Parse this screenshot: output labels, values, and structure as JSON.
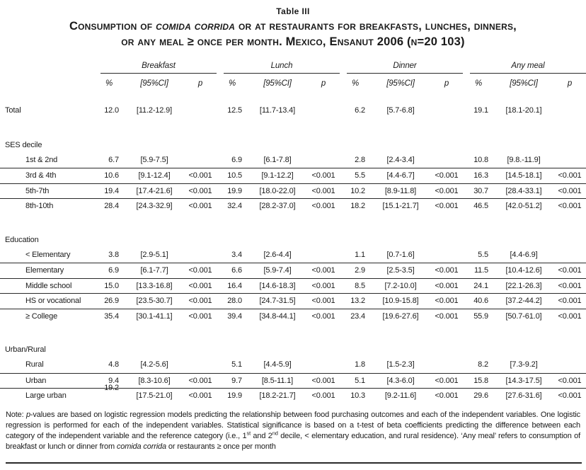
{
  "table_label": "Table III",
  "title": {
    "line1": [
      {
        "t": "Consumption of ",
        "s": "n"
      },
      {
        "t": "comida corrida",
        "s": "i"
      },
      {
        "t": " or at restaurants for breakfasts, lunches, dinners,",
        "s": "n"
      }
    ],
    "line2": [
      {
        "t": "or any meal ≥ once per month. Mexico, Ensanut 2006 (n=20 103)",
        "s": "n"
      }
    ]
  },
  "columns": {
    "groups": [
      "Breakfast",
      "Lunch",
      "Dinner",
      "Any meal"
    ],
    "sub": [
      "%",
      "[95%CI]",
      "p"
    ]
  },
  "sections": [
    {
      "header": "",
      "rows": [
        {
          "label": "Total",
          "indent": false,
          "cells": [
            "12.0",
            "[11.2-12.9]",
            "",
            "12.5",
            "[11.7-13.4]",
            "",
            "6.2",
            "[5.7-6.8]",
            "",
            "19.1",
            "[18.1-20.1]",
            ""
          ]
        }
      ]
    },
    {
      "header": "SES decile",
      "rows": [
        {
          "label": "1st & 2nd",
          "indent": true,
          "cells": [
            "6.7",
            "[5.9-7.5]",
            "",
            "6.9",
            "[6.1-7.8]",
            "",
            "2.8",
            "[2.4-3.4]",
            "",
            "10.8",
            "[9.8.-11.9]",
            ""
          ]
        },
        {
          "label": "3rd & 4th",
          "indent": true,
          "cells": [
            "10.6",
            "[9.1-12.4]",
            "<0.001",
            "10.5",
            "[9.1-12.2]",
            "<0.001",
            "5.5",
            "[4.4-6.7]",
            "<0.001",
            "16.3",
            "[14.5-18.1]",
            "<0.001"
          ]
        },
        {
          "label": "5th-7th",
          "indent": true,
          "cells": [
            "19.4",
            "[17.4-21.6]",
            "<0.001",
            "19.9",
            "[18.0-22.0]",
            "<0.001",
            "10.2",
            "[8.9-11.8]",
            "<0.001",
            "30.7",
            "[28.4-33.1]",
            "<0.001"
          ]
        },
        {
          "label": "8th-10th",
          "indent": true,
          "cells": [
            "28.4",
            "[24.3-32.9]",
            "<0.001",
            "32.4",
            "[28.2-37.0]",
            "<0.001",
            "18.2",
            "[15.1-21.7]",
            "<0.001",
            "46.5",
            "[42.0-51.2]",
            "<0.001"
          ]
        }
      ]
    },
    {
      "header": "Education",
      "rows": [
        {
          "label": "< Elementary",
          "indent": true,
          "cells": [
            "3.8",
            "[2.9-5.1]",
            "",
            "3.4",
            "[2.6-4.4]",
            "",
            "1.1",
            "[0.7-1.6]",
            "",
            "5.5",
            "[4.4-6.9]",
            ""
          ]
        },
        {
          "label": "Elementary",
          "indent": true,
          "cells": [
            "6.9",
            "[6.1-7.7]",
            "<0.001",
            "6.6",
            "[5.9-7.4]",
            "<0.001",
            "2.9",
            "[2.5-3.5]",
            "<0.001",
            "11.5",
            "[10.4-12.6]",
            "<0.001"
          ]
        },
        {
          "label": "Middle school",
          "indent": true,
          "cells": [
            "15.0",
            "[13.3-16.8]",
            "<0.001",
            "16.4",
            "[14.6-18.3]",
            "<0.001",
            "8.5",
            "[7.2-10.0]",
            "<0.001",
            "24.1",
            "[22.1-26.3]",
            "<0.001"
          ]
        },
        {
          "label": "HS or vocational",
          "indent": true,
          "cells": [
            "26.9",
            "[23.5-30.7]",
            "<0.001",
            "28.0",
            "[24.7-31.5]",
            "<0.001",
            "13.2",
            "[10.9-15.8]",
            "<0.001",
            "40.6",
            "[37.2-44.2]",
            "<0.001"
          ]
        },
        {
          "label": "≥ College",
          "indent": true,
          "cells": [
            "35.4",
            "[30.1-41.1]",
            "<0.001",
            "39.4",
            "[34.8-44.1]",
            "<0.001",
            "23.4",
            "[19.6-27.6]",
            "<0.001",
            "55.9",
            "[50.7-61.0]",
            "<0.001"
          ]
        }
      ]
    },
    {
      "header": "Urban/Rural",
      "rows": [
        {
          "label": "Rural",
          "indent": true,
          "cells": [
            "4.8",
            "[4.2-5.6]",
            "",
            "5.1",
            "[4.4-5.9]",
            "",
            "1.8",
            "[1.5-2.3]",
            "",
            "8.2",
            "[7.3-9.2]",
            ""
          ]
        },
        {
          "label": "Urban",
          "indent": true,
          "cells": [
            "9.4",
            "[8.3-10.6]",
            "<0.001",
            "9.7",
            "[8.5-11.1]",
            "<0.001",
            "5.1",
            "[4.3-6.0]",
            "<0.001",
            "15.8",
            "[14.3-17.5]",
            "<0.001"
          ]
        },
        {
          "label": "Large urban",
          "indent": true,
          "pct_raised": true,
          "cells": [
            "19.2",
            "[17.5-21.0]",
            "<0.001",
            "19.9",
            "[18.2-21.7]",
            "<0.001",
            "10.3",
            "[9.2-11.6]",
            "<0.001",
            "29.6",
            "[27.6-31.6]",
            "<0.001"
          ]
        }
      ]
    }
  ],
  "note": [
    {
      "t": "Note: ",
      "s": "n"
    },
    {
      "t": "p",
      "s": "i"
    },
    {
      "t": "-values are based on logistic regression models predicting the relationship between food purchasing outcomes and each of the independent variables. One logistic regression is performed for each of the independent variables. Statistical significance is based on a t-test of beta coefficients predicting the difference between each category of the independent variable and the reference category (i.e., 1",
      "s": "n"
    },
    {
      "t": "st",
      "s": "sup"
    },
    {
      "t": " and 2",
      "s": "n"
    },
    {
      "t": "nd",
      "s": "sup"
    },
    {
      "t": " decile, < elementary education, and rural residence). ‘Any meal’ refers to consumption of breakfast or lunch or dinner from ",
      "s": "n"
    },
    {
      "t": "comida corrida",
      "s": "i"
    },
    {
      "t": " or restaurants ≥ once per month",
      "s": "n"
    }
  ]
}
